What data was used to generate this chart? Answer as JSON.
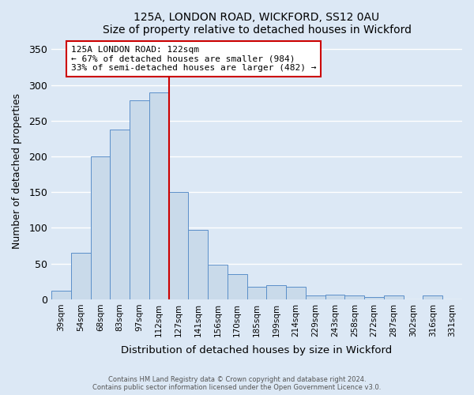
{
  "title": "125A, LONDON ROAD, WICKFORD, SS12 0AU",
  "subtitle": "Size of property relative to detached houses in Wickford",
  "xlabel": "Distribution of detached houses by size in Wickford",
  "ylabel": "Number of detached properties",
  "bar_labels": [
    "39sqm",
    "54sqm",
    "68sqm",
    "83sqm",
    "97sqm",
    "112sqm",
    "127sqm",
    "141sqm",
    "156sqm",
    "170sqm",
    "185sqm",
    "199sqm",
    "214sqm",
    "229sqm",
    "243sqm",
    "258sqm",
    "272sqm",
    "287sqm",
    "302sqm",
    "316sqm",
    "331sqm"
  ],
  "bar_values": [
    12,
    65,
    200,
    238,
    278,
    290,
    150,
    97,
    48,
    35,
    18,
    20,
    18,
    5,
    7,
    5,
    3,
    5,
    0,
    5,
    0
  ],
  "bar_color": "#c9daea",
  "bar_edge_color": "#5b8fc9",
  "vline_color": "#cc0000",
  "vline_index": 5.5,
  "annotation_text": "125A LONDON ROAD: 122sqm\n← 67% of detached houses are smaller (984)\n33% of semi-detached houses are larger (482) →",
  "annotation_box_color": "#ffffff",
  "annotation_box_edge": "#cc0000",
  "ylim": [
    0,
    360
  ],
  "yticks": [
    0,
    50,
    100,
    150,
    200,
    250,
    300,
    350
  ],
  "footer_line1": "Contains HM Land Registry data © Crown copyright and database right 2024.",
  "footer_line2": "Contains public sector information licensed under the Open Government Licence v3.0.",
  "background_color": "#dce8f5",
  "grid_color": "#ffffff"
}
